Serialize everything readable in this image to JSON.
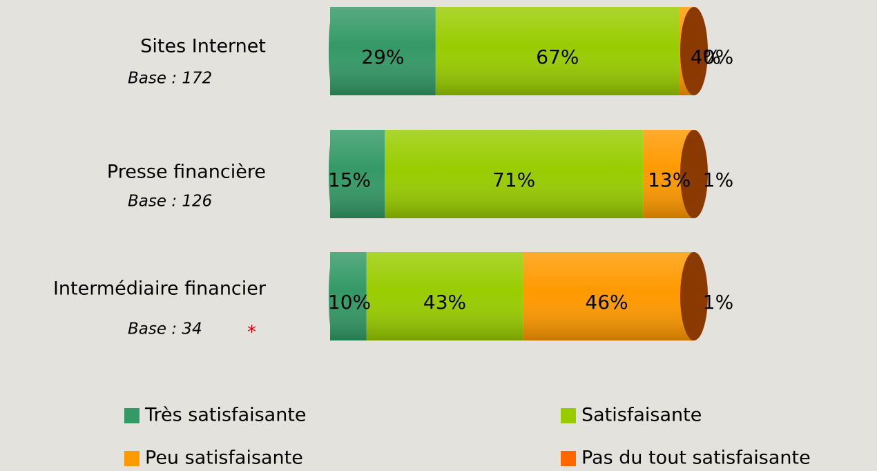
{
  "chart_data": {
    "type": "bar",
    "orientation": "horizontal",
    "stacked": true,
    "categories": [
      "Sites Internet",
      "Presse financière",
      "Intermédiaire financier"
    ],
    "bases": [
      "Base :  172",
      "Base :  126",
      "Base :  34"
    ],
    "footnote_marker": "*",
    "series": [
      {
        "name": "Très satisfaisante",
        "color": "#339966",
        "values": [
          29,
          15,
          10
        ],
        "value_labels": [
          "29%",
          "15%",
          "10%"
        ]
      },
      {
        "name": "Satisfaisante",
        "color": "#99cc00",
        "values": [
          67,
          71,
          43
        ],
        "value_labels": [
          "67%",
          "71%",
          "43%"
        ]
      },
      {
        "name": "Peu satisfaisante",
        "color": "#ff9900",
        "values": [
          4,
          13,
          46
        ],
        "value_labels": [
          "4%",
          "13%",
          "46%"
        ]
      },
      {
        "name": "Pas du tout satisfaisante",
        "color": "#ff6600",
        "values": [
          0,
          1,
          1
        ],
        "value_labels": [
          "0%",
          "1%",
          "1%"
        ]
      }
    ],
    "xlim": [
      0,
      100
    ]
  }
}
